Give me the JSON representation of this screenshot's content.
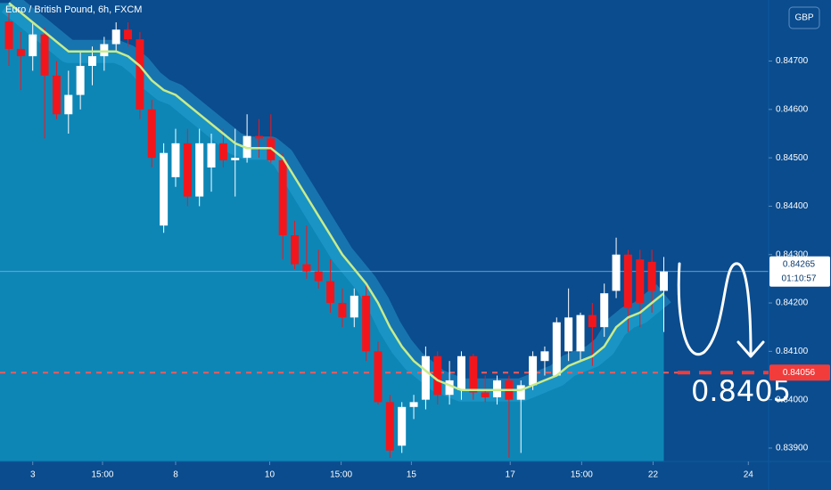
{
  "chart_data": {
    "type": "candlestick",
    "title": "Euro / British Pound, 6h, FXCM",
    "currency": "GBP",
    "categories": [
      null,
      null,
      null,
      null,
      null,
      null,
      null,
      null,
      null,
      null,
      null,
      null,
      null,
      null,
      null,
      null,
      null,
      null,
      null,
      null,
      null,
      null,
      null,
      null,
      null,
      null,
      null,
      null,
      null,
      null,
      null,
      null,
      null,
      null,
      null,
      null,
      null,
      null,
      null,
      null,
      null,
      null,
      null,
      null,
      null,
      null,
      null,
      null,
      null,
      null,
      null,
      null,
      null,
      null,
      null,
      null
    ],
    "open": [
      0.84782,
      0.84725,
      0.8471,
      0.84755,
      0.8467,
      0.8459,
      0.8463,
      0.8469,
      0.8471,
      0.84735,
      0.84765,
      0.84745,
      0.846,
      0.8436,
      0.8446,
      0.8453,
      0.8442,
      0.8448,
      0.8453,
      0.84495,
      0.845,
      0.84545,
      0.8454,
      0.84495,
      0.8434,
      0.8428,
      0.84265,
      0.84245,
      0.842,
      0.8417,
      0.84215,
      0.841,
      0.83995,
      0.83905,
      0.83985,
      0.84,
      0.8409,
      0.8401,
      0.8402,
      0.8409,
      0.84015,
      0.84005,
      0.8404,
      0.84,
      0.8403,
      0.8408,
      0.8405,
      0.841,
      0.841,
      0.84175,
      0.8415,
      0.84225,
      0.843,
      0.8429,
      0.84285,
      0.84225
    ],
    "high": [
      0.848,
      0.8476,
      0.8478,
      0.8477,
      0.847,
      0.8468,
      0.8472,
      0.8473,
      0.8475,
      0.8478,
      0.8478,
      0.8476,
      0.8462,
      0.8453,
      0.8456,
      0.8456,
      0.8456,
      0.8455,
      0.8456,
      0.8456,
      0.8459,
      0.8458,
      0.8459,
      0.8451,
      0.8437,
      0.8436,
      0.8431,
      0.8429,
      0.8423,
      0.8423,
      0.8424,
      0.8412,
      0.8401,
      0.83995,
      0.8401,
      0.8411,
      0.841,
      0.8408,
      0.841,
      0.84095,
      0.8405,
      0.8405,
      0.8405,
      0.8404,
      0.841,
      0.8411,
      0.8417,
      0.8423,
      0.8418,
      0.842,
      0.8424,
      0.84335,
      0.8431,
      0.8431,
      0.8431,
      0.84295
    ],
    "low": [
      0.8469,
      0.8464,
      0.8468,
      0.8454,
      0.8458,
      0.8455,
      0.846,
      0.8465,
      0.8468,
      0.8472,
      0.8473,
      0.8458,
      0.8448,
      0.84345,
      0.8444,
      0.844,
      0.844,
      0.8443,
      0.8448,
      0.8442,
      0.8449,
      0.845,
      0.8449,
      0.8429,
      0.8427,
      0.8425,
      0.8423,
      0.8418,
      0.8415,
      0.8415,
      0.8408,
      0.8399,
      0.8388,
      0.8389,
      0.8396,
      0.8398,
      0.8399,
      0.8399,
      0.84,
      0.84,
      0.83995,
      0.8399,
      0.8388,
      0.8389,
      0.8402,
      0.8405,
      0.8405,
      0.8408,
      0.8408,
      0.8407,
      0.8413,
      0.8421,
      0.8414,
      0.8415,
      0.8418,
      0.8414
    ],
    "close": [
      0.84725,
      0.8471,
      0.84755,
      0.8467,
      0.8459,
      0.8463,
      0.8469,
      0.8471,
      0.84735,
      0.84765,
      0.84745,
      0.846,
      0.845,
      0.8451,
      0.8453,
      0.8442,
      0.8453,
      0.8453,
      0.84495,
      0.845,
      0.84545,
      0.8454,
      0.84495,
      0.8434,
      0.8428,
      0.84265,
      0.84245,
      0.842,
      0.8417,
      0.84215,
      0.841,
      0.83995,
      0.83895,
      0.83985,
      0.83995,
      0.8409,
      0.8401,
      0.8404,
      0.8409,
      0.84015,
      0.84005,
      0.8404,
      0.84,
      0.8403,
      0.8409,
      0.841,
      0.8416,
      0.8417,
      0.84175,
      0.8415,
      0.8422,
      0.843,
      0.8419,
      0.842,
      0.84225,
      0.84265
    ],
    "up_color": "#ffffff",
    "down_color": "#f2161c",
    "ma": {
      "color": "#c8ec8a",
      "values": [
        0.8482,
        0.848,
        0.8478,
        0.8476,
        0.8474,
        0.8472,
        0.8472,
        0.8472,
        0.8472,
        0.8472,
        0.8471,
        0.8469,
        0.8466,
        0.8464,
        0.8463,
        0.8461,
        0.8459,
        0.8457,
        0.8455,
        0.8453,
        0.8452,
        0.8452,
        0.8452,
        0.845,
        0.8446,
        0.8442,
        0.8438,
        0.8434,
        0.843,
        0.8427,
        0.8424,
        0.842,
        0.8415,
        0.8411,
        0.8408,
        0.8406,
        0.8404,
        0.8403,
        0.8402,
        0.8402,
        0.8402,
        0.8402,
        0.8402,
        0.8402,
        0.8403,
        0.8404,
        0.8405,
        0.8407,
        0.8408,
        0.8409,
        0.8411,
        0.8415,
        0.8417,
        0.8418,
        0.842,
        0.8422
      ]
    },
    "last_price": {
      "value": 0.84265,
      "countdown": "01:10:57"
    },
    "level": {
      "value": 0.84056,
      "color": "#f05a5a"
    },
    "annotation": "0.8405",
    "xlim": [
      -0.75,
      63.8
    ],
    "xticks": [
      {
        "value": 2.0,
        "label": "3"
      },
      {
        "value": 7.86,
        "label": "15:00"
      },
      {
        "value": 14.0,
        "label": "8"
      },
      {
        "value": 21.9,
        "label": "10"
      },
      {
        "value": 27.9,
        "label": "15:00"
      },
      {
        "value": 33.8,
        "label": "15"
      },
      {
        "value": 42.1,
        "label": "17"
      },
      {
        "value": 48.1,
        "label": "15:00"
      },
      {
        "value": 54.1,
        "label": "22"
      },
      {
        "value": 62.1,
        "label": "24"
      }
    ],
    "ylim": [
      0.838723,
      0.848262
    ],
    "yticks": [
      {
        "value": 0.839,
        "label": "0.83900"
      },
      {
        "value": 0.84,
        "label": "0.84000"
      },
      {
        "value": 0.841,
        "label": "0.84100"
      },
      {
        "value": 0.842,
        "label": "0.84200"
      },
      {
        "value": 0.843,
        "label": "0.84300"
      },
      {
        "value": 0.844,
        "label": "0.84400"
      },
      {
        "value": 0.845,
        "label": "0.84500"
      },
      {
        "value": 0.846,
        "label": "0.84600"
      },
      {
        "value": 0.847,
        "label": "0.84700"
      }
    ]
  }
}
